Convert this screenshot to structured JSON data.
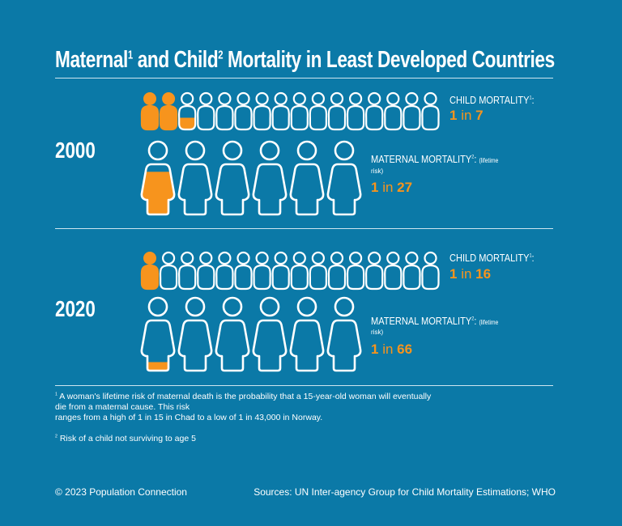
{
  "title": {
    "part1": "Maternal",
    "sup1": "1",
    "part2": " and Child",
    "sup2": "2",
    "part3": " Mortality in Least Developed Countries"
  },
  "colors": {
    "background": "#0b79a7",
    "highlight": "#f7941d",
    "outline": "#ffffff"
  },
  "sections": [
    {
      "year": "2000",
      "child": {
        "label": "CHILD MORTALITY",
        "sup": "1",
        "colon": ":",
        "value_one": "1",
        "value_in": " in ",
        "value_n": "7",
        "icon_count": 16,
        "fills": [
          1,
          1,
          0.5
        ]
      },
      "maternal": {
        "label": "MATERNAL MORTALITY",
        "sup": "2",
        "colon": ":",
        "note": "(lifetime",
        "note2": "risk)",
        "value_one": "1",
        "value_in": " in ",
        "value_n": "27",
        "icon_count": 6,
        "fills": [
          0.85
        ]
      }
    },
    {
      "year": "2020",
      "child": {
        "label": "CHILD MORTALITY",
        "sup": "1",
        "colon": ":",
        "value_one": "1",
        "value_in": " in ",
        "value_n": "16",
        "icon_count": 16,
        "fills": [
          1
        ]
      },
      "maternal": {
        "label": "MATERNAL MORTALITY",
        "sup": "2",
        "colon": ":",
        "note": "(lifetime",
        "note2": "risk)",
        "value_one": "1",
        "value_in": " in ",
        "value_n": "66",
        "icon_count": 6,
        "fills": [
          0.17
        ]
      }
    }
  ],
  "footnotes": {
    "n1_sup": "1",
    "n1_line1": " A woman's lifetime risk of maternal death is the probability that a 15-year-old woman will eventually",
    "n1_line2": "die from a maternal cause. This risk",
    "n1_line3": "ranges from a high of 1 in 15 in Chad to a low of 1 in 43,000 in Norway.",
    "n2_sup": "2",
    "n2_text": " Risk of a child not surviving to age 5"
  },
  "footer": {
    "copyright": "© 2023 Population Connection",
    "sources": "Sources: UN Inter-agency Group for Child Mortality Estimations; WHO"
  }
}
